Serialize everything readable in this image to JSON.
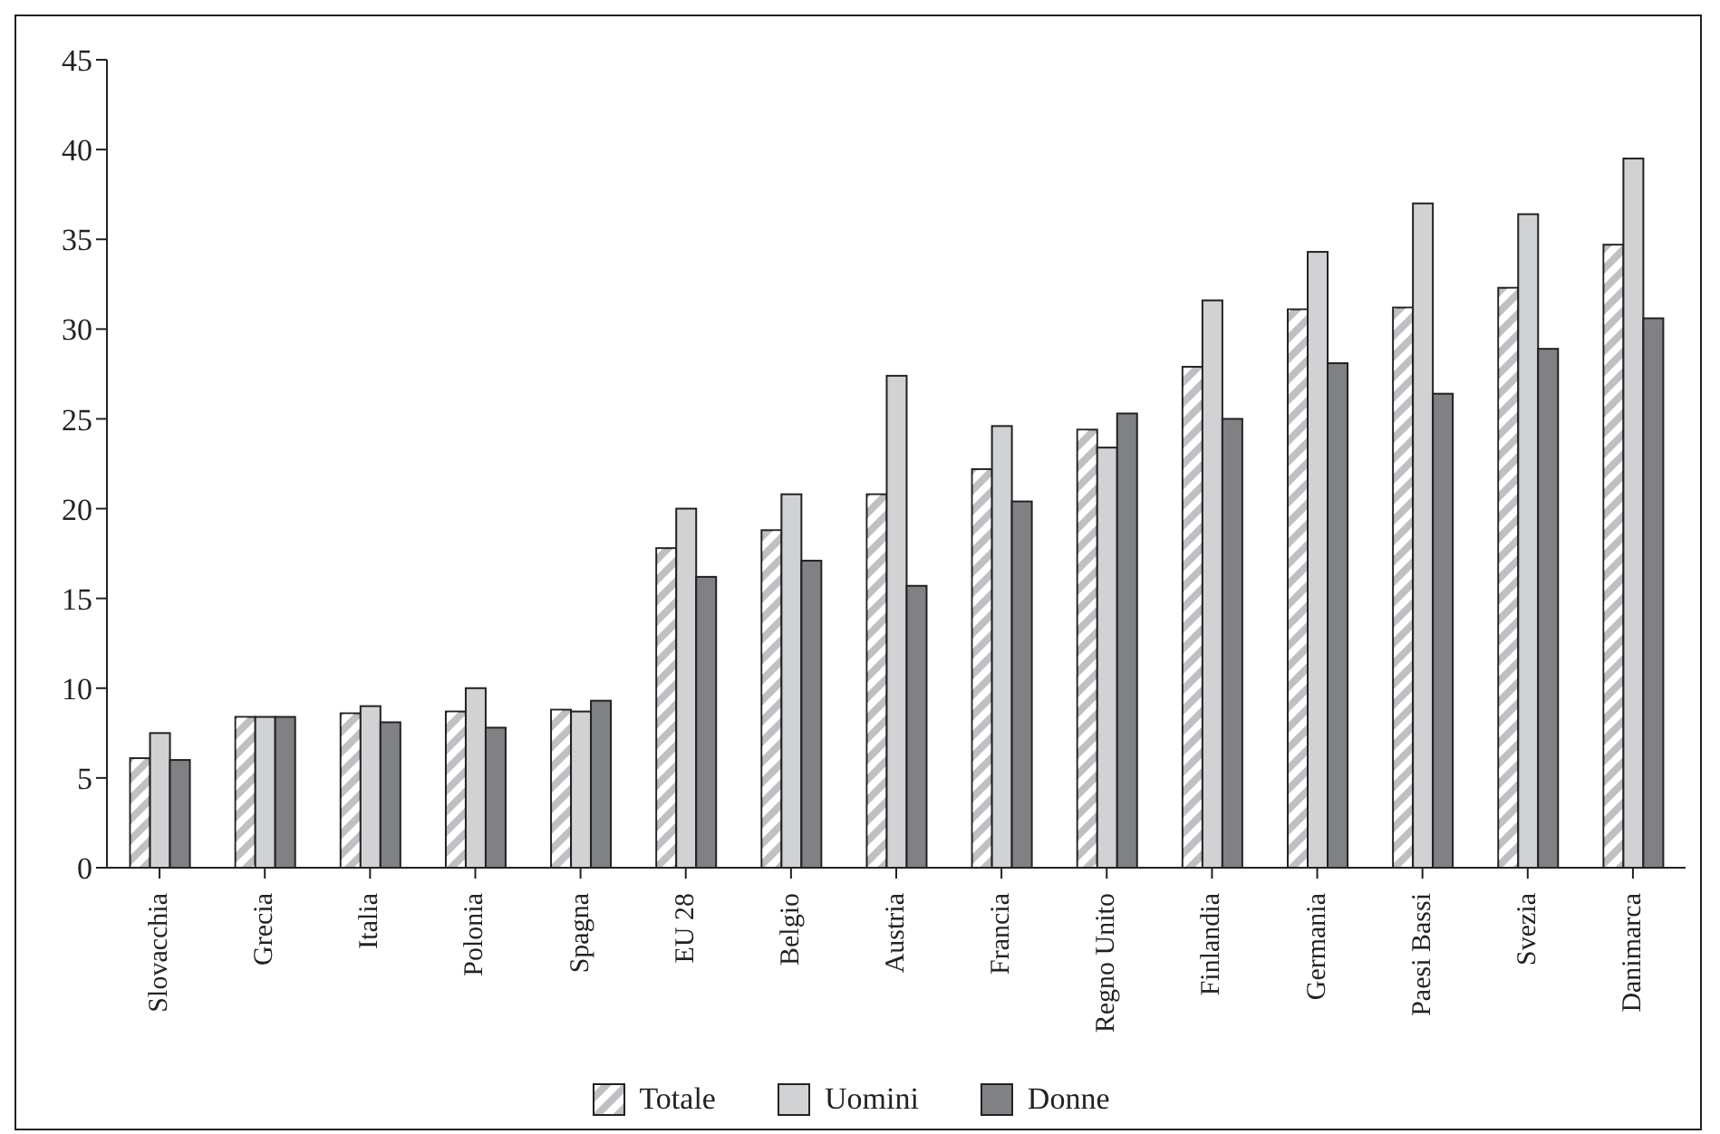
{
  "chart_data": {
    "type": "bar",
    "categories": [
      "Slovacchia",
      "Grecia",
      "Italia",
      "Polonia",
      "Spagna",
      "EU 28",
      "Belgio",
      "Austria",
      "Francia",
      "Regno Unito",
      "Finlandia",
      "Germania",
      "Paesi Bassi",
      "Svezia",
      "Danimarca"
    ],
    "series": [
      {
        "name": "Totale",
        "color": "#c0c0c4",
        "values": [
          6.1,
          8.4,
          8.6,
          8.7,
          8.8,
          17.8,
          18.8,
          20.8,
          22.2,
          24.4,
          27.9,
          31.1,
          31.2,
          32.3,
          34.7
        ]
      },
      {
        "name": "Uomini",
        "color": "#d1d2d4",
        "values": [
          7.5,
          8.4,
          9.0,
          10.0,
          8.7,
          20.0,
          20.8,
          27.4,
          24.6,
          23.4,
          31.6,
          34.3,
          37.0,
          36.4,
          39.5
        ]
      },
      {
        "name": "Donne",
        "color": "#808185",
        "values": [
          6.0,
          8.4,
          8.1,
          7.8,
          9.3,
          16.2,
          17.1,
          15.7,
          20.4,
          25.3,
          25.0,
          28.1,
          26.4,
          28.9,
          30.6
        ]
      }
    ],
    "ylim": [
      0,
      45
    ],
    "yticks": [
      0,
      5,
      10,
      15,
      20,
      25,
      30,
      35,
      40,
      45
    ],
    "grid": false,
    "legend": "bottom"
  }
}
